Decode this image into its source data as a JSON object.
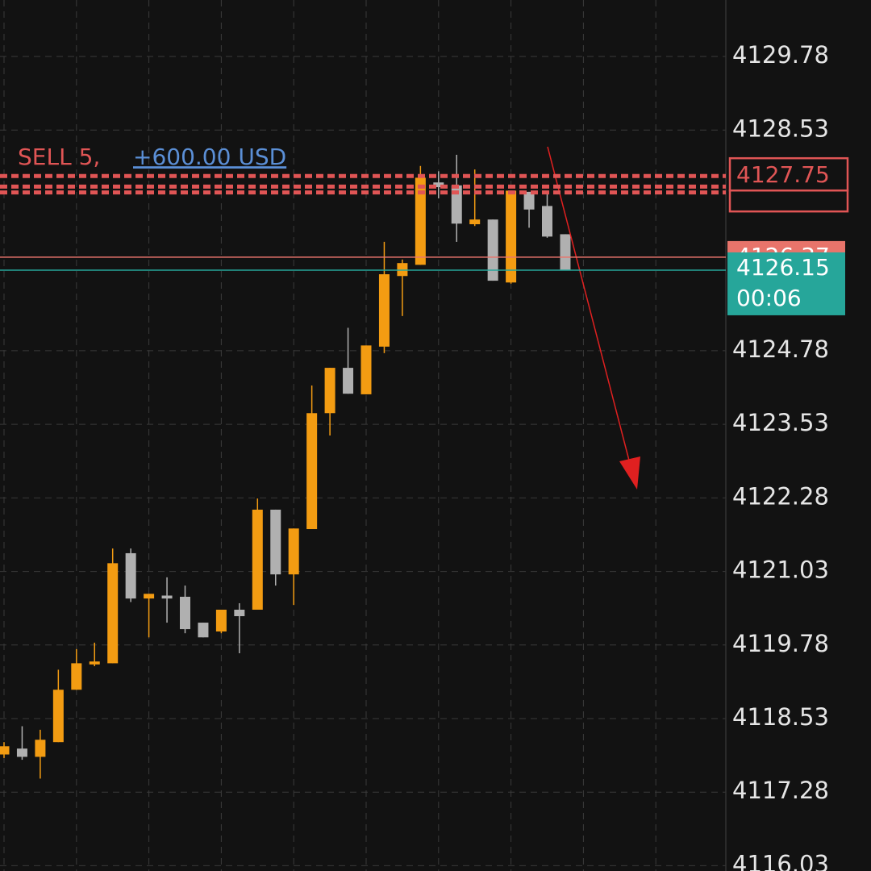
{
  "chart_data": {
    "type": "candlestick",
    "up_color": "#f39c12",
    "down_color": "#b0b0b0",
    "open": [
      4117.92,
      4118.02,
      4117.88,
      4118.13,
      4119.02,
      4119.45,
      4119.47,
      4121.34,
      4120.57,
      4120.62,
      4120.6,
      4120.16,
      4120.01,
      4120.38,
      4120.38,
      4122.08,
      4120.98,
      4121.75,
      4123.72,
      4124.49,
      4124.04,
      4124.85,
      4126.05,
      4126.24,
      4127.64,
      4127.59,
      4126.93,
      4127.01,
      4125.94,
      4127.48,
      4127.24,
      4126.76
    ],
    "high": [
      4118.13,
      4118.4,
      4118.34,
      4119.36,
      4119.71,
      4119.82,
      4121.42,
      4121.42,
      4120.65,
      4120.93,
      4120.79,
      4120.16,
      4120.38,
      4120.49,
      4122.27,
      4122.08,
      4121.76,
      4124.19,
      4124.49,
      4125.17,
      4124.87,
      4126.63,
      4126.33,
      4127.92,
      4127.83,
      4128.11,
      4127.86,
      4127.01,
      4127.5,
      4127.48,
      4127.45,
      4126.76
    ],
    "low": [
      4117.86,
      4117.83,
      4117.51,
      4118.13,
      4119.02,
      4119.42,
      4119.47,
      4120.51,
      4119.91,
      4120.16,
      4119.98,
      4119.91,
      4119.98,
      4119.64,
      4120.38,
      4120.79,
      4120.46,
      4121.75,
      4123.34,
      4124.05,
      4124.04,
      4124.74,
      4125.37,
      4126.24,
      4127.37,
      4126.63,
      4126.9,
      4125.97,
      4125.92,
      4126.87,
      4126.7,
      4126.15
    ],
    "close": [
      4118.06,
      4117.88,
      4118.17,
      4119.02,
      4119.47,
      4119.5,
      4121.17,
      4120.57,
      4120.65,
      4120.57,
      4120.05,
      4119.91,
      4120.38,
      4120.27,
      4122.08,
      4120.98,
      4121.76,
      4123.72,
      4124.49,
      4124.05,
      4124.87,
      4126.08,
      4126.27,
      4127.72,
      4127.56,
      4126.94,
      4127.01,
      4125.97,
      4127.5,
      4127.18,
      4126.72,
      4126.15
    ],
    "ylim": [
      4115.94,
      4130.74
    ],
    "yticks": [
      4129.78,
      4128.53,
      4124.78,
      4123.53,
      4122.28,
      4121.03,
      4119.78,
      4118.53,
      4117.28,
      4116.03
    ],
    "grid": true,
    "order": {
      "side": "SELL 5,",
      "pnl": "+600.00 USD",
      "price": 4127.75,
      "color": "#e05555",
      "pnl_color": "#5b8fd6"
    },
    "order_lines": [
      4127.57,
      4127.47
    ],
    "bid_price": 4126.37,
    "bid_color": "#e8746b",
    "current_price": 4126.15,
    "current_color": "#26a69a",
    "timer": "00:06"
  }
}
